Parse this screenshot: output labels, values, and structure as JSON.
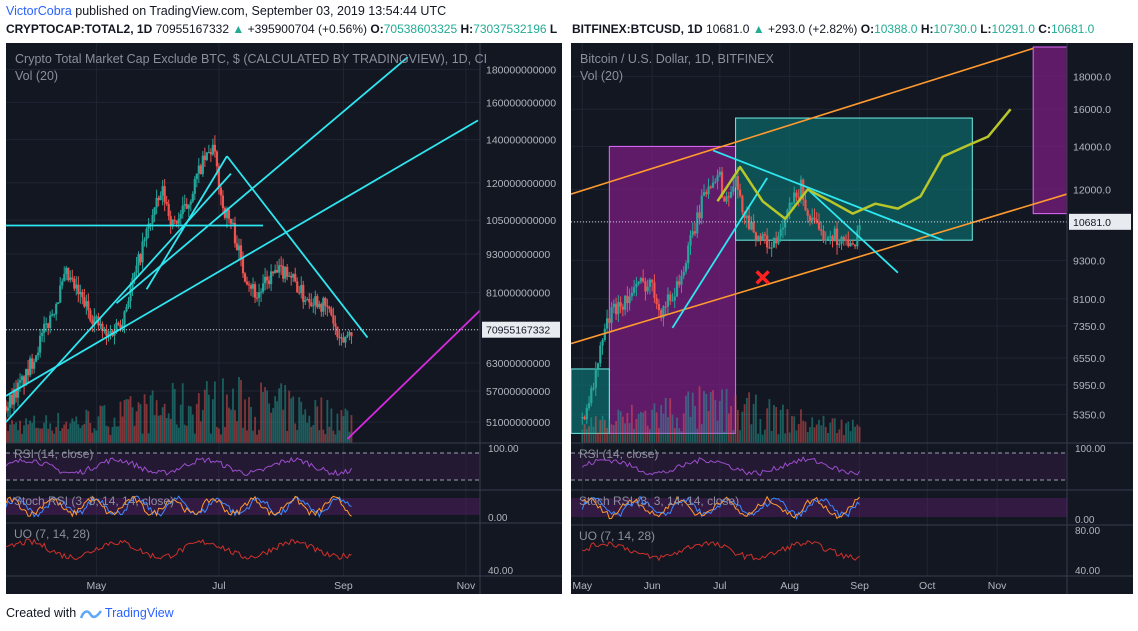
{
  "header": {
    "author": "VictorCobra",
    "published_text": "published on TradingView.com, September 03, 2019 13:54:44 UTC"
  },
  "left_symbol": {
    "ticker": "CRYPTOCAP:TOTAL2, 1D",
    "last": "70955167332",
    "change": "+395900704 (+0.56%)",
    "o_label": "O:",
    "o": "70538603325",
    "h_label": "H:",
    "h": "73037532196",
    "l_label": "L"
  },
  "right_symbol": {
    "ticker": "BITFINEX:BTCUSD, 1D",
    "last": "10681.0",
    "change": "+293.0 (+2.82%)",
    "o_label": "O:",
    "o": "10388.0",
    "h_label": "H:",
    "h": "10730.0",
    "l_label": "L:",
    "l": "10291.0",
    "c_label": "C:",
    "c": "10681.0"
  },
  "footer": {
    "created_with": "Created with",
    "brand": "TradingView"
  },
  "colors": {
    "bg": "#131722",
    "grid": "#1f2533",
    "up": "#26a69a",
    "down": "#ef5350",
    "cyan": "#2ee6f0",
    "magenta": "#d62ae0",
    "orange": "#ff9a2e",
    "olive": "#b8c62a",
    "purple_box": "#7a1e80",
    "teal_box": "#0c6b6b",
    "red_x": "#ff2020"
  },
  "chart_data": [
    {
      "type": "candlestick",
      "title": "Crypto Total Market Cap Exclude BTC, $ (CALCULATED BY TRADINGVIEW), 1D, CI",
      "volume_label": "Vol (20)",
      "y_scale": "log",
      "ylim": [
        48000000000,
        195000000000
      ],
      "y_ticks": [
        "180000000000",
        "160000000000",
        "140000000000",
        "120000000000",
        "105000000000",
        "93000000000",
        "81000000000",
        "70955167332",
        "63000000000",
        "57000000000",
        "51000000000"
      ],
      "y_tick_values": [
        180000000000,
        160000000000,
        140000000000,
        120000000000,
        105000000000,
        93000000000,
        81000000000,
        70955167332,
        63000000000,
        57000000000,
        51000000000
      ],
      "last_value": "70955167332",
      "x_ticks": [
        "May",
        "Jul",
        "Sep",
        "Nov"
      ],
      "x_tick_days": [
        45,
        106,
        168,
        229
      ],
      "x_range_days": [
        0,
        236
      ],
      "close_days": [
        0,
        10,
        22,
        30,
        40,
        50,
        58,
        65,
        72,
        78,
        83,
        90,
        97,
        103,
        108,
        113,
        118,
        125,
        132,
        140,
        148,
        155,
        162,
        166,
        172
      ],
      "close_values": [
        54000000000,
        60000000000,
        74000000000,
        86000000000,
        77000000000,
        69000000000,
        74000000000,
        88000000000,
        105000000000,
        116000000000,
        103000000000,
        110000000000,
        127000000000,
        136000000000,
        110000000000,
        102000000000,
        88000000000,
        80000000000,
        86000000000,
        88000000000,
        80000000000,
        79000000000,
        75000000000,
        67000000000,
        71000000000
      ],
      "indicators": [
        {
          "label": "RSI (14, close)",
          "scale_top": "100.00"
        },
        {
          "label": "Stoch RSI (3, 3, 14, 14, close)",
          "scale": "0.00"
        },
        {
          "label": "UO (7, 14, 28)",
          "scale": "40.00"
        }
      ]
    },
    {
      "type": "candlestick",
      "title": "Bitcoin / U.S. Dollar, 1D, BITFINEX",
      "volume_label": "Vol (20)",
      "y_scale": "log",
      "ylim": [
        4900,
        20000
      ],
      "y_ticks": [
        "18000.0",
        "16000.0",
        "14000.0",
        "12000.0",
        "10681.0",
        "9300.0",
        "8100.0",
        "7350.0",
        "6550.0",
        "5950.0",
        "5350.0"
      ],
      "y_tick_values": [
        18000,
        16000,
        14000,
        12000,
        10681,
        9300,
        8100,
        7350,
        6550,
        5950,
        5350
      ],
      "last_value": "10681.0",
      "x_ticks": [
        "May",
        "Jun",
        "Jul",
        "Aug",
        "Sep",
        "Oct",
        "Nov"
      ],
      "x_tick_days": [
        0,
        31,
        61,
        92,
        123,
        153,
        184
      ],
      "x_range_days": [
        -5,
        215
      ],
      "close_days": [
        0,
        5,
        10,
        15,
        20,
        25,
        30,
        35,
        40,
        45,
        50,
        55,
        60,
        63,
        65,
        68,
        70,
        75,
        80,
        85,
        88,
        92,
        97,
        100,
        105,
        110,
        115,
        120,
        123
      ],
      "close_values": [
        5300,
        5900,
        7300,
        7900,
        8100,
        8500,
        8600,
        7800,
        8200,
        9000,
        10500,
        12000,
        12900,
        11500,
        11800,
        12300,
        11500,
        10500,
        10000,
        9800,
        10200,
        11200,
        12100,
        11000,
        10200,
        10300,
        10000,
        9700,
        10681
      ],
      "projection_days": [
        60,
        70,
        80,
        90,
        100,
        110,
        120,
        130,
        140,
        150,
        160,
        170,
        180,
        190
      ],
      "projection_values": [
        11500,
        13000,
        11500,
        10800,
        12000,
        11500,
        11000,
        11400,
        11200,
        11700,
        13500,
        14000,
        14500,
        16000
      ],
      "indicators": [
        {
          "label": "RSI (14, close)",
          "scale_top": "100.00"
        },
        {
          "label": "Stoch RSI (3, 3, 14, 14, close)",
          "scale": "0.00"
        },
        {
          "label": "UO (7, 14, 28)",
          "scale_top": "80.00",
          "scale": "40.00"
        }
      ]
    }
  ]
}
